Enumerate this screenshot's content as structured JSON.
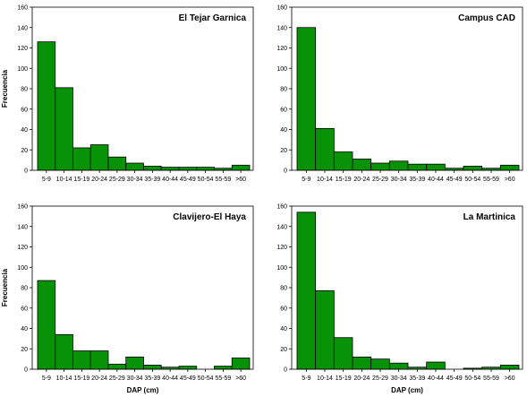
{
  "chart_data": [
    {
      "type": "bar",
      "title": "El Tejar Garnica",
      "ylabel": "Frecuencia",
      "xlabel": "",
      "ylim": [
        0,
        160
      ],
      "yticks": [
        0,
        20,
        40,
        60,
        80,
        100,
        120,
        140,
        160
      ],
      "categories": [
        "5-9",
        "10-14",
        "15-19",
        "20-24",
        "25-29",
        "30-34",
        "35-39",
        "40-44",
        "45-49",
        "50-54",
        "55-59",
        ">60"
      ],
      "values": [
        126,
        81,
        22,
        25,
        13,
        7,
        4,
        3,
        3,
        3,
        2,
        5
      ]
    },
    {
      "type": "bar",
      "title": "Campus CAD",
      "ylabel": "",
      "xlabel": "",
      "ylim": [
        0,
        160
      ],
      "yticks": [
        0,
        20,
        40,
        60,
        80,
        100,
        120,
        140,
        160
      ],
      "categories": [
        "5-9",
        "10-14",
        "15-19",
        "20-24",
        "25-29",
        "30-34",
        "35-39",
        "40-44",
        "45-49",
        "50-54",
        "55-59",
        ">60"
      ],
      "values": [
        140,
        41,
        18,
        11,
        7,
        9,
        6,
        6,
        2,
        4,
        2,
        5
      ]
    },
    {
      "type": "bar",
      "title": "Clavijero-El Haya",
      "ylabel": "Frecuencia",
      "xlabel": "DAP (cm)",
      "ylim": [
        0,
        160
      ],
      "yticks": [
        0,
        20,
        40,
        60,
        80,
        100,
        120,
        140,
        160
      ],
      "categories": [
        "5-9",
        "10-14",
        "15-19",
        "20-24",
        "25-29",
        "30-34",
        "35-39",
        "40-44",
        "45-49",
        "50-54",
        "55-59",
        ">60"
      ],
      "values": [
        87,
        34,
        18,
        18,
        5,
        12,
        4,
        2,
        3,
        0,
        3,
        11
      ]
    },
    {
      "type": "bar",
      "title": "La Martinica",
      "ylabel": "",
      "xlabel": "DAP (cm)",
      "ylim": [
        0,
        160
      ],
      "yticks": [
        0,
        20,
        40,
        60,
        80,
        100,
        120,
        140,
        160
      ],
      "categories": [
        "5-9",
        "10-14",
        "15-19",
        "20-24",
        "25-29",
        "30-34",
        "35-39",
        "40-44",
        "45-49",
        "50-54",
        "55-59",
        ">60"
      ],
      "values": [
        154,
        77,
        31,
        12,
        10,
        6,
        2,
        7,
        0,
        1,
        2,
        4
      ]
    }
  ],
  "colors": {
    "bar_fill": "#079207",
    "bar_stroke": "#000000"
  }
}
